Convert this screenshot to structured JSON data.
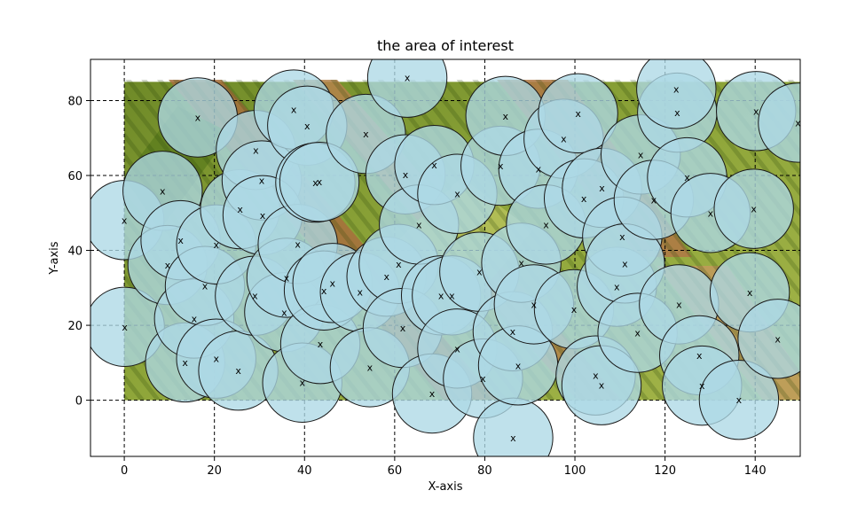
{
  "chart_data": {
    "type": "scatter",
    "title": "the area of interest",
    "xlabel": "X-axis",
    "ylabel": "Y-axis",
    "xlim": [
      -7.5,
      150
    ],
    "ylim": [
      -15,
      91
    ],
    "xticks": [
      0,
      20,
      40,
      60,
      80,
      100,
      120,
      140
    ],
    "yticks": [
      0,
      20,
      40,
      60,
      80
    ],
    "grid": true,
    "grid_style": "dashed",
    "background_image_region": {
      "x": [
        0,
        150
      ],
      "y": [
        0,
        85
      ],
      "description": "aerial farmland fields"
    },
    "circle_radius": 8.8,
    "circle_fill": "#add8e6",
    "circle_edge": "#1a1a1a",
    "center_marker": "x",
    "points": [
      [
        0.1,
        19.6
      ],
      [
        0,
        48.1
      ],
      [
        8.5,
        55.9
      ],
      [
        9.6,
        36.1
      ],
      [
        12.5,
        42.7
      ],
      [
        13.5,
        10.1
      ],
      [
        15.5,
        21.8
      ],
      [
        16.3,
        75.5
      ],
      [
        17.9,
        30.5
      ],
      [
        20.4,
        11.1
      ],
      [
        20.4,
        41.6
      ],
      [
        25.3,
        7.9
      ],
      [
        25.7,
        51
      ],
      [
        29,
        27.9
      ],
      [
        29.2,
        66.8
      ],
      [
        30.5,
        58.7
      ],
      [
        30.7,
        49.4
      ],
      [
        35.5,
        23.5
      ],
      [
        36,
        32.7
      ],
      [
        37.6,
        77.6
      ],
      [
        38.5,
        41.7
      ],
      [
        39.5,
        4.7
      ],
      [
        40.6,
        73.3
      ],
      [
        42.4,
        58.1
      ],
      [
        43.3,
        58.3
      ],
      [
        43.5,
        15
      ],
      [
        44.3,
        29.3
      ],
      [
        46.2,
        31.3
      ],
      [
        52.3,
        28.9
      ],
      [
        53.6,
        71.1
      ],
      [
        54.5,
        8.8
      ],
      [
        58.2,
        33
      ],
      [
        60.9,
        36.4
      ],
      [
        61.8,
        19.3
      ],
      [
        62.4,
        60.3
      ],
      [
        62.8,
        86.1
      ],
      [
        65.4,
        46.9
      ],
      [
        68.3,
        1.8
      ],
      [
        68.8,
        62.8
      ],
      [
        70.3,
        28
      ],
      [
        72.7,
        28
      ],
      [
        73.9,
        55.1
      ],
      [
        73.9,
        13.8
      ],
      [
        78.8,
        34.3
      ],
      [
        79.6,
        5.8
      ],
      [
        83.5,
        62.6
      ],
      [
        84.6,
        75.9
      ],
      [
        86.2,
        18.4
      ],
      [
        86.3,
        -10
      ],
      [
        87.4,
        9.3
      ],
      [
        88.1,
        36.7
      ],
      [
        90.9,
        25.6
      ],
      [
        91.9,
        61.8
      ],
      [
        93.6,
        46.9
      ],
      [
        97.5,
        69.8
      ],
      [
        99.8,
        24.3
      ],
      [
        100.7,
        76.6
      ],
      [
        102,
        53.9
      ],
      [
        106,
        56.7
      ],
      [
        104.6,
        6.6
      ],
      [
        105.9,
        4
      ],
      [
        109.3,
        30.3
      ],
      [
        110.5,
        43.7
      ],
      [
        111.1,
        36.5
      ],
      [
        113.9,
        18
      ],
      [
        114.6,
        65.6
      ],
      [
        117.5,
        53.5
      ],
      [
        123.1,
        25.6
      ],
      [
        122.7,
        76.8
      ],
      [
        122.5,
        83.1
      ],
      [
        124.9,
        59.5
      ],
      [
        130.1,
        50
      ],
      [
        127.6,
        12
      ],
      [
        128.2,
        3.9
      ],
      [
        136.4,
        0.1
      ],
      [
        138.8,
        28.8
      ],
      [
        139.7,
        51.1
      ],
      [
        140.2,
        77.2
      ],
      [
        145,
        16.4
      ],
      [
        149.5,
        74.1
      ]
    ]
  }
}
